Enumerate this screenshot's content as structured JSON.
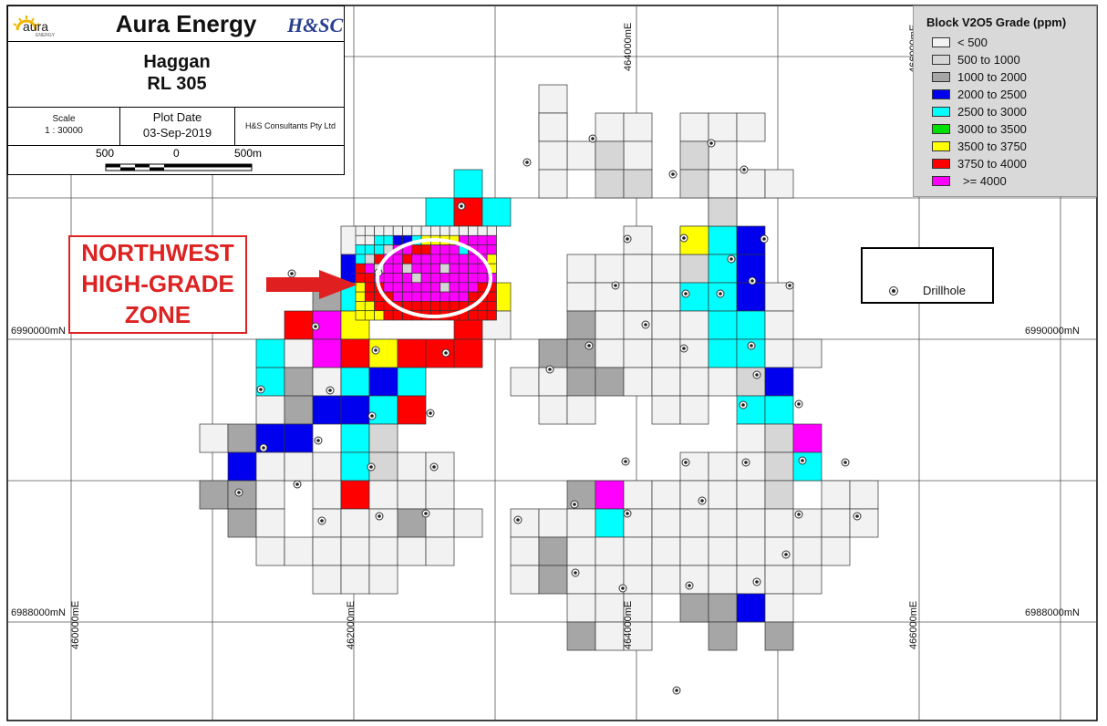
{
  "title_block": {
    "logo_text": "aura",
    "logo_sub": "ENERGY",
    "company": "Aura Energy",
    "consultant_logo": "H&SC",
    "project": "Haggan",
    "licence": "RL 305",
    "scale_label": "Scale",
    "scale_value": "1 : 30000",
    "plot_date_label": "Plot Date",
    "plot_date_value": "03-Sep-2019",
    "consultant": "H&S Consultants Pty Ltd",
    "scalebar_left": "500",
    "scalebar_mid": "0",
    "scalebar_right": "500m"
  },
  "legend": {
    "title": "Block V2O5 Grade (ppm)",
    "items": [
      {
        "label": "< 500",
        "color": "#f2f2f2"
      },
      {
        "label": "500 to 1000",
        "color": "#d6d6d6"
      },
      {
        "label": "1000 to 2000",
        "color": "#a6a6a6"
      },
      {
        "label": "2000 to 2500",
        "color": "#0000ee"
      },
      {
        "label": "2500 to 3000",
        "color": "#00ffff"
      },
      {
        "label": "3000 to 3500",
        "color": "#00e000"
      },
      {
        "label": "3500 to 3750",
        "color": "#ffff00"
      },
      {
        "label": "3750 to 4000",
        "color": "#ff0000"
      },
      {
        "label": ">= 4000",
        "color": "#ff00ff"
      }
    ]
  },
  "drillhole_legend": {
    "label": "Drillhole"
  },
  "zone_label": {
    "lines": [
      "NORTHWEST",
      "HIGH-GRADE",
      "ZONE"
    ]
  },
  "grid_labels": {
    "e460000": "460000mE",
    "e462000": "462000mE",
    "e464000": "464000mE",
    "e466000": "466000mE",
    "n6990000": "6990000mN",
    "n6988000": "6988000mN"
  },
  "colors": {
    "accent": "#dd2222",
    "grid": "#555555"
  }
}
